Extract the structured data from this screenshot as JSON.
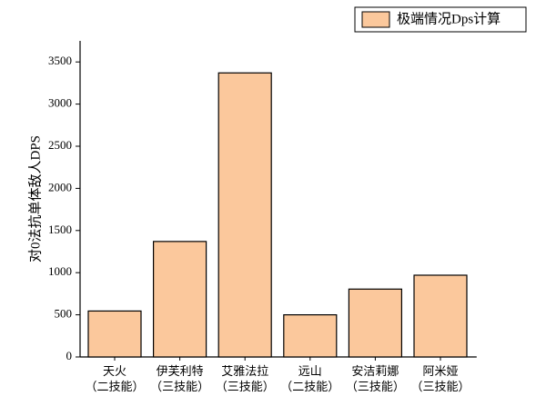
{
  "chart_data": {
    "type": "bar",
    "y_label": "对0法抗单体敌人DPS",
    "categories": [
      [
        "天火",
        "（二技能）"
      ],
      [
        "伊芙利特",
        "（三技能）"
      ],
      [
        "艾雅法拉",
        "（三技能）"
      ],
      [
        "远山",
        "（二技能）"
      ],
      [
        "安洁莉娜",
        "（三技能）"
      ],
      [
        "阿米娅",
        "（三技能）"
      ]
    ],
    "series": [
      {
        "name": "极端情况Dps计算",
        "color": "#fbc89c",
        "values": [
          545,
          1370,
          3370,
          500,
          805,
          970
        ]
      }
    ],
    "ylim": [
      0,
      3750
    ],
    "yticks": [
      0,
      500,
      1000,
      1500,
      2000,
      2500,
      3000,
      3500
    ],
    "legend": "top-right"
  }
}
